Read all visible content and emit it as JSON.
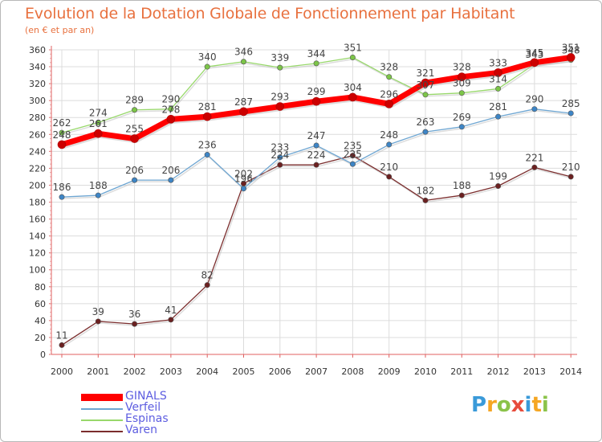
{
  "chart_data": {
    "type": "line",
    "title": "Evolution de la Dotation Globale de Fonctionnement par Habitant",
    "subtitle": "(en € et par an)",
    "xlabel": "",
    "ylabel": "",
    "categories": [
      "2000",
      "2001",
      "2002",
      "2003",
      "2004",
      "2005",
      "2006",
      "2007",
      "2008",
      "2009",
      "2010",
      "2011",
      "2012",
      "2013",
      "2014"
    ],
    "ylim": [
      0,
      360
    ],
    "yticks": [
      0,
      20,
      40,
      60,
      80,
      100,
      120,
      140,
      160,
      180,
      200,
      220,
      240,
      260,
      280,
      300,
      320,
      340,
      360
    ],
    "grid": true,
    "legend_position": "bottom-left",
    "series": [
      {
        "name": "GINALS",
        "color": "#ff0000",
        "marker_color": "#cc0000",
        "values": [
          248,
          261,
          255,
          278,
          281,
          287,
          293,
          299,
          304,
          296,
          321,
          328,
          333,
          345,
          351
        ]
      },
      {
        "name": "Verfeil",
        "color": "#6ea6d2",
        "marker_color": "#3d85c6",
        "values": [
          186,
          188,
          206,
          206,
          236,
          196,
          233,
          247,
          225,
          248,
          263,
          269,
          281,
          290,
          285
        ]
      },
      {
        "name": "Espinas",
        "color": "#98d86b",
        "marker_color": "#7cc548",
        "values": [
          262,
          274,
          289,
          290,
          340,
          346,
          339,
          344,
          351,
          328,
          307,
          309,
          314,
          343,
          348
        ]
      },
      {
        "name": "Varen",
        "color": "#7b2d2d",
        "marker_color": "#6b2020",
        "values": [
          11,
          39,
          36,
          41,
          82,
          202,
          224,
          224,
          235,
          210,
          182,
          188,
          199,
          221,
          210
        ]
      }
    ]
  },
  "brand": {
    "letters": [
      "P",
      "r",
      "o",
      "x",
      "i",
      "t",
      "i"
    ],
    "name": "Proxiti"
  }
}
